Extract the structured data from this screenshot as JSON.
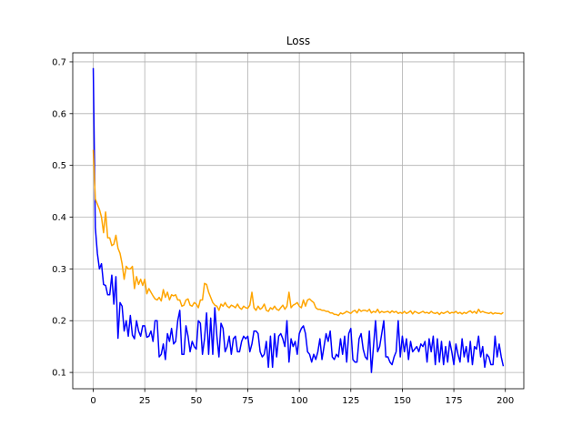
{
  "chart_data": {
    "type": "line",
    "title": "Loss",
    "x": [
      0,
      1,
      2,
      3,
      4,
      5,
      6,
      7,
      8,
      9,
      10,
      11,
      12,
      13,
      14,
      15,
      16,
      17,
      18,
      19,
      20,
      21,
      22,
      23,
      24,
      25,
      26,
      27,
      28,
      29,
      30,
      31,
      32,
      33,
      34,
      35,
      36,
      37,
      38,
      39,
      40,
      41,
      42,
      43,
      44,
      45,
      46,
      47,
      48,
      49,
      50,
      51,
      52,
      53,
      54,
      55,
      56,
      57,
      58,
      59,
      60,
      61,
      62,
      63,
      64,
      65,
      66,
      67,
      68,
      69,
      70,
      71,
      72,
      73,
      74,
      75,
      76,
      77,
      78,
      79,
      80,
      81,
      82,
      83,
      84,
      85,
      86,
      87,
      88,
      89,
      90,
      91,
      92,
      93,
      94,
      95,
      96,
      97,
      98,
      99,
      100,
      101,
      102,
      103,
      104,
      105,
      106,
      107,
      108,
      109,
      110,
      111,
      112,
      113,
      114,
      115,
      116,
      117,
      118,
      119,
      120,
      121,
      122,
      123,
      124,
      125,
      126,
      127,
      128,
      129,
      130,
      131,
      132,
      133,
      134,
      135,
      136,
      137,
      138,
      139,
      140,
      141,
      142,
      143,
      144,
      145,
      146,
      147,
      148,
      149,
      150,
      151,
      152,
      153,
      154,
      155,
      156,
      157,
      158,
      159,
      160,
      161,
      162,
      163,
      164,
      165,
      166,
      167,
      168,
      169,
      170,
      171,
      172,
      173,
      174,
      175,
      176,
      177,
      178,
      179,
      180,
      181,
      182,
      183,
      184,
      185,
      186,
      187,
      188,
      189,
      190,
      191,
      192,
      193,
      194,
      195,
      196,
      197,
      198,
      199
    ],
    "series": [
      {
        "color": "#0000ff",
        "values": [
          0.688,
          0.38,
          0.33,
          0.3,
          0.31,
          0.27,
          0.268,
          0.25,
          0.25,
          0.288,
          0.232,
          0.285,
          0.166,
          0.235,
          0.228,
          0.18,
          0.2,
          0.17,
          0.21,
          0.172,
          0.165,
          0.2,
          0.18,
          0.17,
          0.19,
          0.19,
          0.168,
          0.17,
          0.18,
          0.16,
          0.2,
          0.2,
          0.13,
          0.135,
          0.155,
          0.125,
          0.175,
          0.16,
          0.185,
          0.155,
          0.16,
          0.2,
          0.22,
          0.135,
          0.135,
          0.19,
          0.17,
          0.14,
          0.16,
          0.15,
          0.145,
          0.2,
          0.195,
          0.135,
          0.165,
          0.215,
          0.135,
          0.205,
          0.135,
          0.225,
          0.17,
          0.13,
          0.195,
          0.185,
          0.14,
          0.15,
          0.17,
          0.135,
          0.165,
          0.17,
          0.14,
          0.14,
          0.16,
          0.17,
          0.165,
          0.17,
          0.14,
          0.155,
          0.18,
          0.18,
          0.175,
          0.14,
          0.13,
          0.135,
          0.16,
          0.11,
          0.17,
          0.11,
          0.175,
          0.13,
          0.17,
          0.175,
          0.165,
          0.15,
          0.2,
          0.12,
          0.165,
          0.15,
          0.16,
          0.135,
          0.175,
          0.185,
          0.19,
          0.175,
          0.14,
          0.135,
          0.12,
          0.135,
          0.125,
          0.14,
          0.165,
          0.125,
          0.15,
          0.175,
          0.16,
          0.18,
          0.13,
          0.125,
          0.135,
          0.13,
          0.165,
          0.135,
          0.17,
          0.12,
          0.175,
          0.185,
          0.125,
          0.12,
          0.12,
          0.165,
          0.175,
          0.145,
          0.13,
          0.125,
          0.18,
          0.1,
          0.15,
          0.2,
          0.14,
          0.15,
          0.175,
          0.2,
          0.13,
          0.13,
          0.12,
          0.115,
          0.13,
          0.14,
          0.2,
          0.13,
          0.17,
          0.14,
          0.165,
          0.125,
          0.16,
          0.14,
          0.145,
          0.15,
          0.14,
          0.155,
          0.15,
          0.16,
          0.12,
          0.165,
          0.14,
          0.17,
          0.115,
          0.165,
          0.12,
          0.16,
          0.115,
          0.15,
          0.12,
          0.16,
          0.14,
          0.115,
          0.155,
          0.135,
          0.12,
          0.165,
          0.13,
          0.15,
          0.12,
          0.16,
          0.115,
          0.15,
          0.145,
          0.17,
          0.13,
          0.15,
          0.11,
          0.135,
          0.13,
          0.115,
          0.115,
          0.17,
          0.13,
          0.155,
          0.13,
          0.112
        ]
      },
      {
        "color": "#ffa500",
        "values": [
          0.53,
          0.435,
          0.425,
          0.415,
          0.4,
          0.37,
          0.41,
          0.36,
          0.36,
          0.345,
          0.348,
          0.365,
          0.34,
          0.33,
          0.31,
          0.28,
          0.305,
          0.3,
          0.3,
          0.305,
          0.262,
          0.285,
          0.27,
          0.28,
          0.268,
          0.28,
          0.252,
          0.262,
          0.255,
          0.248,
          0.242,
          0.24,
          0.245,
          0.238,
          0.26,
          0.245,
          0.255,
          0.24,
          0.25,
          0.248,
          0.25,
          0.24,
          0.24,
          0.228,
          0.23,
          0.24,
          0.242,
          0.23,
          0.228,
          0.235,
          0.232,
          0.225,
          0.24,
          0.24,
          0.272,
          0.27,
          0.255,
          0.245,
          0.235,
          0.23,
          0.228,
          0.22,
          0.232,
          0.228,
          0.235,
          0.228,
          0.225,
          0.23,
          0.228,
          0.225,
          0.232,
          0.225,
          0.222,
          0.228,
          0.225,
          0.224,
          0.23,
          0.255,
          0.225,
          0.22,
          0.228,
          0.222,
          0.225,
          0.232,
          0.22,
          0.218,
          0.225,
          0.222,
          0.228,
          0.222,
          0.22,
          0.225,
          0.23,
          0.222,
          0.228,
          0.255,
          0.225,
          0.23,
          0.232,
          0.235,
          0.228,
          0.225,
          0.24,
          0.228,
          0.24,
          0.242,
          0.238,
          0.235,
          0.225,
          0.222,
          0.222,
          0.22,
          0.22,
          0.218,
          0.218,
          0.215,
          0.215,
          0.212,
          0.212,
          0.21,
          0.215,
          0.213,
          0.215,
          0.218,
          0.216,
          0.214,
          0.218,
          0.22,
          0.215,
          0.222,
          0.218,
          0.22,
          0.22,
          0.218,
          0.222,
          0.215,
          0.218,
          0.216,
          0.222,
          0.215,
          0.218,
          0.216,
          0.217,
          0.218,
          0.215,
          0.219,
          0.216,
          0.218,
          0.214,
          0.216,
          0.214,
          0.218,
          0.214,
          0.216,
          0.219,
          0.213,
          0.218,
          0.216,
          0.214,
          0.216,
          0.218,
          0.215,
          0.216,
          0.214,
          0.218,
          0.215,
          0.214,
          0.216,
          0.212,
          0.216,
          0.214,
          0.216,
          0.218,
          0.214,
          0.216,
          0.215,
          0.218,
          0.214,
          0.216,
          0.213,
          0.216,
          0.214,
          0.217,
          0.219,
          0.215,
          0.218,
          0.214,
          0.222,
          0.216,
          0.218,
          0.216,
          0.215,
          0.214,
          0.216,
          0.213,
          0.215,
          0.214,
          0.214,
          0.213,
          0.216
        ]
      }
    ],
    "xlim": [
      -9.95,
      208.95
    ],
    "xticks": [
      0,
      25,
      50,
      75,
      100,
      125,
      150,
      175,
      200
    ],
    "ylim": [
      0.0685,
      0.7175
    ],
    "yticks": [
      0.1,
      0.2,
      0.3,
      0.4,
      0.5,
      0.6,
      0.7
    ],
    "grid": true
  }
}
